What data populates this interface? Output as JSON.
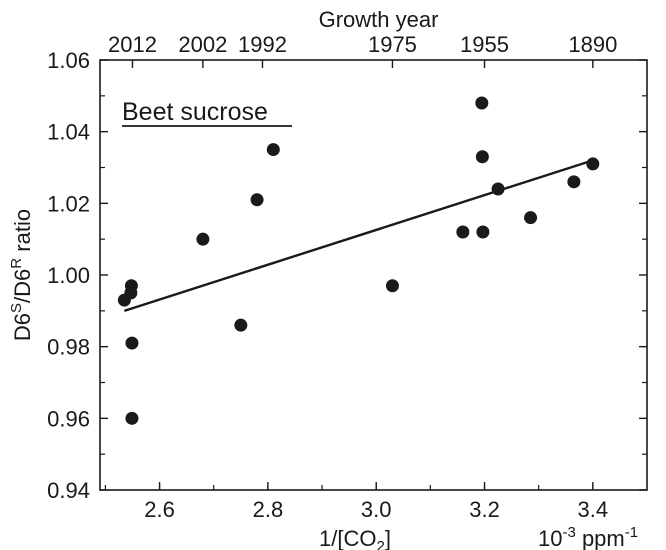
{
  "chart_data": {
    "type": "scatter",
    "title": "",
    "annotation": "Beet sucrose",
    "xlabel": "1/[CO",
    "xlabel_sub": "2",
    "xlabel_close": "]",
    "xunit_base": "10",
    "xunit_exp": "-3",
    "xunit_text": " ppm",
    "xunit_exp2": "-1",
    "ylabel_parts": [
      "D6",
      "S",
      "/D6",
      "R",
      " ratio"
    ],
    "top_axis_label": "Growth year",
    "xlim": [
      2.49,
      3.5
    ],
    "ylim": [
      0.94,
      1.06
    ],
    "x_ticks": [
      2.6,
      2.8,
      3.0,
      3.2,
      3.4
    ],
    "x_tick_labels": [
      "2.6",
      "2.8",
      "3.0",
      "3.2",
      "3.4"
    ],
    "y_ticks": [
      0.94,
      0.96,
      0.98,
      1.0,
      1.02,
      1.04,
      1.06
    ],
    "y_tick_labels": [
      "0.94",
      "0.96",
      "0.98",
      "1.00",
      "1.02",
      "1.04",
      "1.06"
    ],
    "top_ticks": [
      {
        "x": 2.55,
        "label": "2012"
      },
      {
        "x": 2.68,
        "label": "2002"
      },
      {
        "x": 2.79,
        "label": "1992"
      },
      {
        "x": 3.03,
        "label": "1975"
      },
      {
        "x": 3.2,
        "label": "1955"
      },
      {
        "x": 3.4,
        "label": "1890"
      }
    ],
    "grid": false,
    "points": [
      {
        "x": 2.535,
        "y": 0.993
      },
      {
        "x": 2.547,
        "y": 0.995
      },
      {
        "x": 2.548,
        "y": 0.997
      },
      {
        "x": 2.549,
        "y": 0.981
      },
      {
        "x": 2.549,
        "y": 0.96
      },
      {
        "x": 2.68,
        "y": 1.01
      },
      {
        "x": 2.75,
        "y": 0.986
      },
      {
        "x": 2.78,
        "y": 1.021
      },
      {
        "x": 2.81,
        "y": 1.035
      },
      {
        "x": 3.03,
        "y": 0.997
      },
      {
        "x": 3.16,
        "y": 1.012
      },
      {
        "x": 3.195,
        "y": 1.048
      },
      {
        "x": 3.196,
        "y": 1.033
      },
      {
        "x": 3.197,
        "y": 1.012
      },
      {
        "x": 3.225,
        "y": 1.024
      },
      {
        "x": 3.285,
        "y": 1.016
      },
      {
        "x": 3.365,
        "y": 1.026
      },
      {
        "x": 3.4,
        "y": 1.031
      }
    ],
    "fit_line": [
      {
        "x": 2.535,
        "y": 0.99
      },
      {
        "x": 3.4,
        "y": 1.032
      }
    ]
  }
}
